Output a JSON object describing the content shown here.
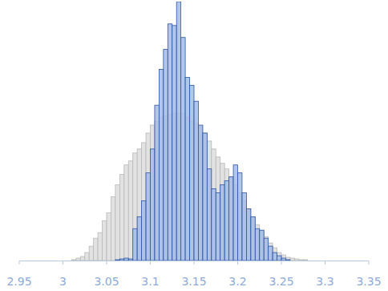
{
  "chart_data": {
    "type": "histogram",
    "bins": [
      3.005,
      3.01,
      3.015,
      3.02,
      3.025,
      3.03,
      3.035,
      3.04,
      3.045,
      3.05,
      3.055,
      3.06,
      3.065,
      3.07,
      3.075,
      3.08,
      3.085,
      3.09,
      3.095,
      3.1,
      3.105,
      3.11,
      3.115,
      3.12,
      3.125,
      3.13,
      3.135,
      3.14,
      3.145,
      3.15,
      3.155,
      3.16,
      3.165,
      3.17,
      3.175,
      3.18,
      3.185,
      3.19,
      3.195,
      3.2,
      3.205,
      3.21,
      3.215,
      3.22,
      3.225,
      3.23,
      3.235,
      3.24,
      3.245,
      3.25,
      3.255,
      3.26,
      3.265,
      3.27,
      3.275,
      3.28,
      3.285,
      3.29,
      3.295
    ],
    "series": [
      {
        "color": "#e2e2e2",
        "values": [
          0,
          1,
          3,
          5,
          10,
          18,
          28,
          35,
          50,
          60,
          80,
          95,
          108,
          120,
          125,
          135,
          140,
          148,
          160,
          170,
          175,
          180,
          182,
          183,
          185,
          185,
          185,
          180,
          175,
          172,
          168,
          160,
          150,
          140,
          130,
          122,
          115,
          105,
          95,
          85,
          75,
          65,
          55,
          45,
          38,
          30,
          22,
          16,
          10,
          7,
          4,
          3,
          2,
          1,
          1,
          0,
          0,
          0
        ]
      },
      {
        "color": "#a3bce6",
        "values": [
          0,
          0,
          0,
          0,
          0,
          0,
          0,
          0,
          0,
          0,
          0,
          1,
          2,
          3,
          2,
          40,
          55,
          75,
          110,
          140,
          195,
          240,
          265,
          297,
          295,
          325,
          280,
          230,
          220,
          200,
          170,
          160,
          115,
          90,
          85,
          95,
          100,
          105,
          120,
          110,
          85,
          65,
          55,
          40,
          38,
          28,
          18,
          10,
          6,
          3,
          1,
          0,
          0,
          0,
          0,
          0,
          0,
          0
        ]
      }
    ],
    "xlim": [
      2.95,
      3.35
    ],
    "xticks": [
      2.95,
      3,
      3.05,
      3.1,
      3.15,
      3.2,
      3.25,
      3.3,
      3.35
    ],
    "ylim": [
      0,
      325
    ],
    "tick_labels": "x"
  }
}
